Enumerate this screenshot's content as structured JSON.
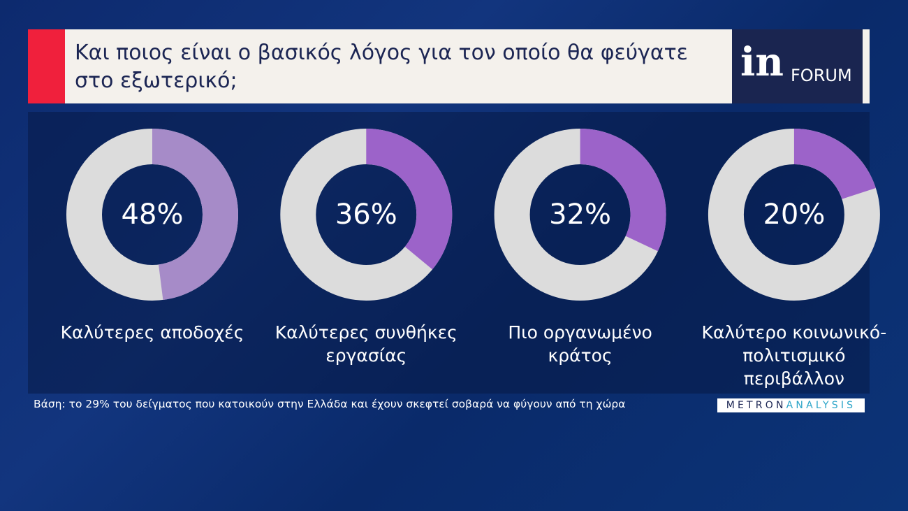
{
  "header": {
    "title": "Και ποιος είναι ο βασικός λόγος για τον οποίο θα φεύγατε στο εξωτερικό;",
    "logo_in": "in",
    "logo_forum": "FORUM"
  },
  "chart_data": {
    "type": "donut",
    "categories": [
      "Καλύτερες αποδοχές",
      "Καλύτερες συνθήκες εργασίας",
      "Πιο οργανωμένο κράτος",
      "Καλύτερο κοινωνικό-πολιτισμικό περιβάλλον"
    ],
    "values": [
      48,
      36,
      32,
      20
    ],
    "value_labels": [
      "48%",
      "36%",
      "32%",
      "20%"
    ],
    "colors": [
      "#a68bc8",
      "#9c63c9",
      "#9c63c9",
      "#9c63c9"
    ],
    "track_color": "#dcdcdc"
  },
  "footer": {
    "note": "Βάση: το 29% του δείγματος που κατοικούν στην Ελλάδα και έχουν σκεφτεί σοβαρά να φύγουν από τη χώρα",
    "source_part1": "METRON",
    "source_part2": "ANALYSIS"
  }
}
